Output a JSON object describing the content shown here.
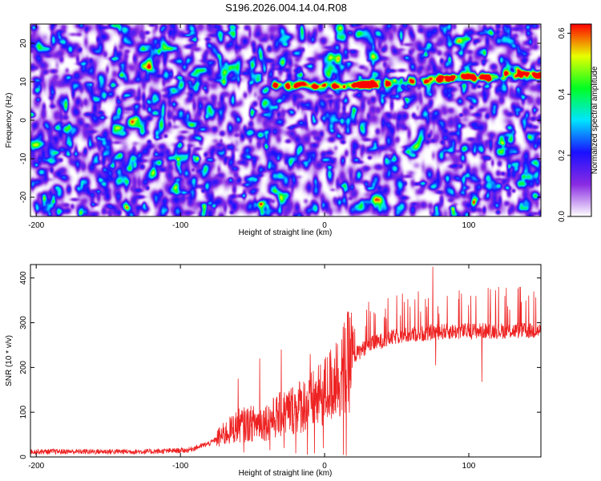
{
  "title": "S196.2026.004.14.04.R08",
  "chart_data": [
    {
      "type": "heatmap",
      "xlabel": "Height of straight line (km)",
      "ylabel": "Frequency (Hz)",
      "xlim": [
        -204,
        150
      ],
      "ylim": [
        -25,
        25
      ],
      "xticks": [
        -200,
        -100,
        0,
        100
      ],
      "yticks": [
        -20,
        -10,
        0,
        10,
        20
      ],
      "colorbar": {
        "label": "Normalized spectral amplitude",
        "range": [
          0.0,
          0.63
        ],
        "ticks": [
          0.0,
          0.2,
          0.4,
          0.6
        ],
        "colors": [
          "#ffffff",
          "#8a2be2",
          "#1a10ff",
          "#00e5ff",
          "#00ff22",
          "#e8ff00",
          "#ff0000"
        ]
      },
      "features": {
        "background_level": [
          0.05,
          0.2
        ],
        "ridge": {
          "description": "enhanced ridge",
          "points": [
            [
              -40,
              9
            ],
            [
              0,
              9
            ],
            [
              20,
              9
            ],
            [
              50,
              10
            ],
            [
              90,
              11
            ],
            [
              150,
              12
            ]
          ],
          "peaks": [
            [
              -92,
              12,
              0.25
            ],
            [
              -35,
              10,
              0.2
            ],
            [
              22,
              9,
              0.3
            ],
            [
              27,
              9,
              0.35
            ],
            [
              87,
              11,
              0.5
            ],
            [
              150,
              12,
              0.45
            ]
          ]
        }
      }
    },
    {
      "type": "line",
      "xlabel": "Height of straight line (km)",
      "ylabel": "SNR (10 * v/v)",
      "xlim": [
        -204,
        150
      ],
      "ylim": [
        0,
        430
      ],
      "xticks": [
        -200,
        -100,
        0,
        100
      ],
      "yticks": [
        0,
        100,
        200,
        300,
        400
      ],
      "line_color": "#ee2222",
      "series": [
        {
          "values_trend": [
            [
              -204,
              12
            ],
            [
              -120,
              12
            ],
            [
              -95,
              15
            ],
            [
              -80,
              30
            ],
            [
              -60,
              70
            ],
            [
              -40,
              80
            ],
            [
              -20,
              110
            ],
            [
              -5,
              130
            ],
            [
              10,
              180
            ],
            [
              18,
              220
            ],
            [
              30,
              250
            ],
            [
              50,
              270
            ],
            [
              80,
              280
            ],
            [
              110,
              282
            ],
            [
              150,
              282
            ]
          ],
          "spikes": [
            [
              -60,
              175
            ],
            [
              -45,
              220
            ],
            [
              -30,
              240
            ],
            [
              -20,
              235
            ],
            [
              -10,
              230
            ],
            [
              -1,
              230
            ],
            [
              8,
              255
            ],
            [
              20,
              280
            ],
            [
              35,
              320
            ],
            [
              44,
              355
            ],
            [
              54,
              365
            ],
            [
              65,
              370
            ],
            [
              75,
              425
            ],
            [
              85,
              360
            ],
            [
              95,
              365
            ],
            [
              105,
              360
            ],
            [
              115,
              375
            ],
            [
              125,
              360
            ],
            [
              135,
              380
            ],
            [
              145,
              370
            ]
          ],
          "dips": [
            [
              -56,
              10
            ],
            [
              -38,
              15
            ],
            [
              -28,
              20
            ],
            [
              -20,
              8
            ],
            [
              -12,
              5
            ],
            [
              -7,
              8
            ],
            [
              -1,
              20
            ],
            [
              13,
              5
            ],
            [
              15,
              3
            ],
            [
              77,
              205
            ],
            [
              109,
              168
            ]
          ]
        }
      ]
    }
  ]
}
